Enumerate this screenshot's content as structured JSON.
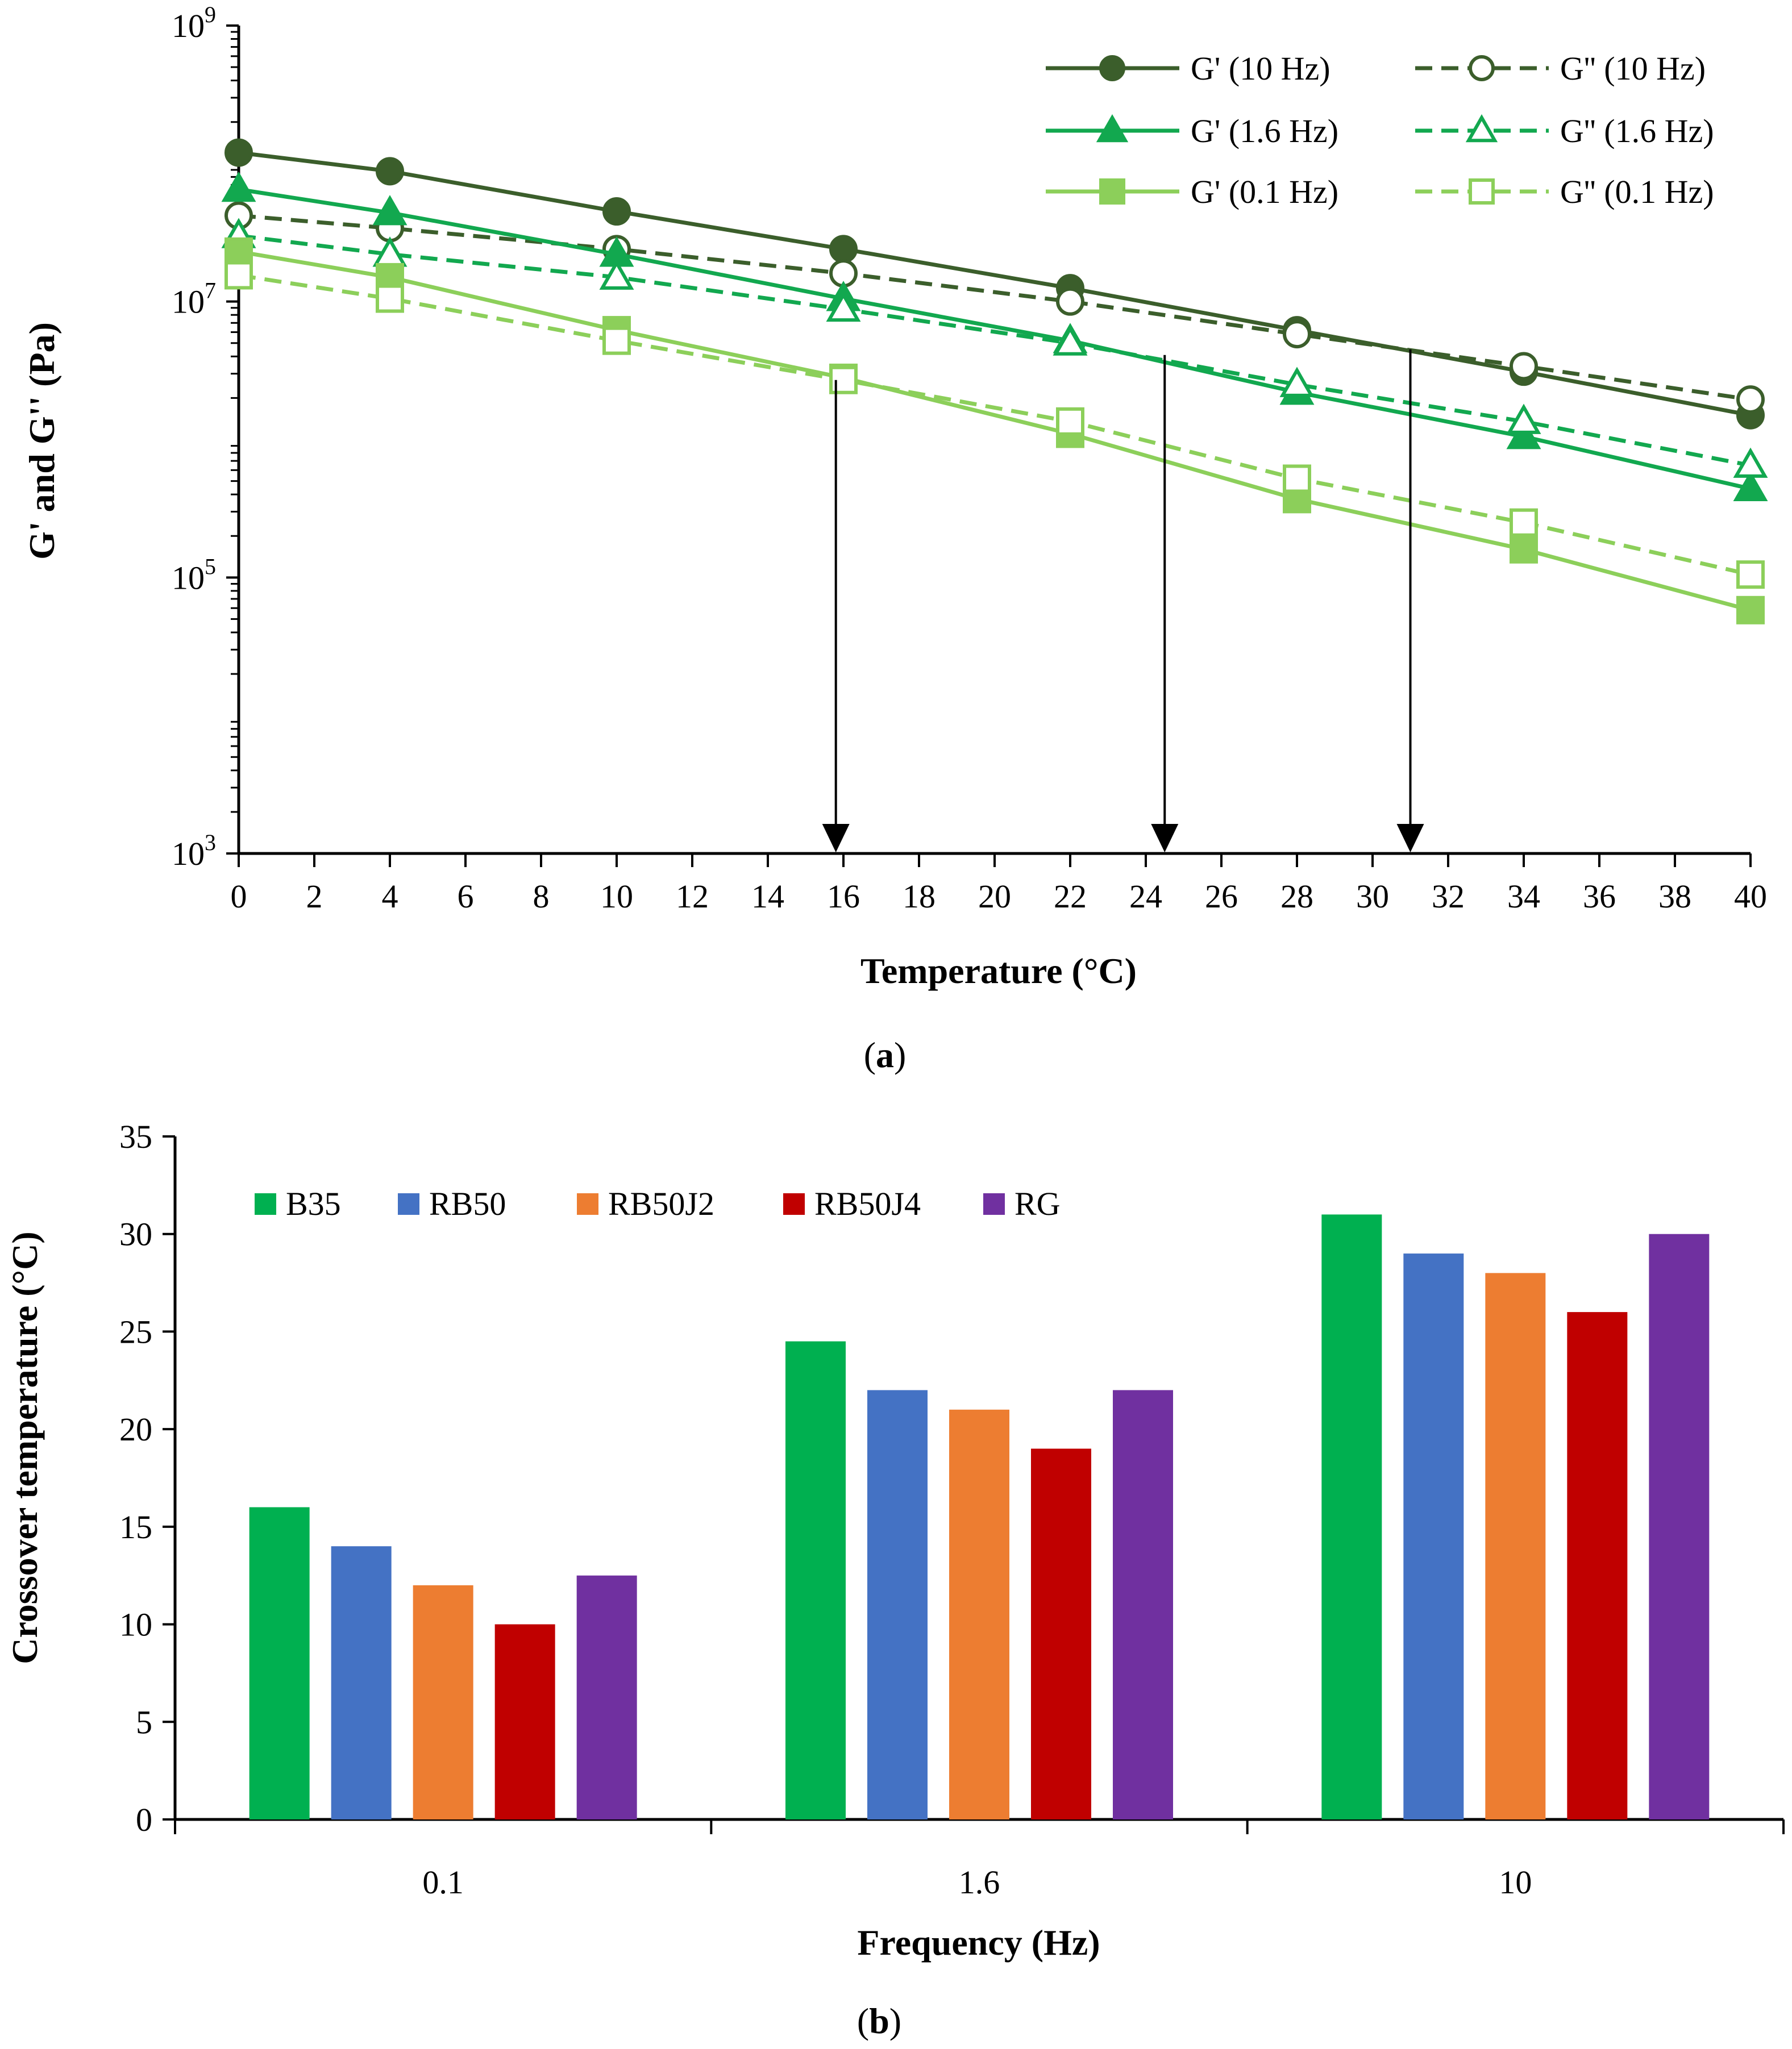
{
  "chart_data": [
    {
      "type": "line",
      "panel_label": "a",
      "xlabel": "Temperature (°C)",
      "ylabel": "G' and G'' (Pa)",
      "xlim": [
        0,
        40
      ],
      "ylim": [
        1000,
        1000000000
      ],
      "yscale": "log",
      "x_ticks": [
        "0",
        "2",
        "4",
        "6",
        "8",
        "10",
        "12",
        "14",
        "16",
        "18",
        "20",
        "22",
        "24",
        "26",
        "28",
        "30",
        "32",
        "34",
        "36",
        "38",
        "40"
      ],
      "y_ticks": [
        {
          "value": 1000,
          "base": "10",
          "exp": "3"
        },
        {
          "value": 100000,
          "base": "10",
          "exp": "5"
        },
        {
          "value": 10000000,
          "base": "10",
          "exp": "7"
        },
        {
          "value": 1000000000,
          "base": "10",
          "exp": "9"
        }
      ],
      "x": [
        0,
        4,
        10,
        16,
        22,
        28,
        34,
        40
      ],
      "series": [
        {
          "name": "G' (10 Hz)",
          "color": "#3b5e2b",
          "dash": false,
          "marker": "circle",
          "filled": true,
          "values": [
            120000000,
            88000000,
            45000000,
            24000000,
            12500000,
            6200000,
            3100000,
            1500000
          ]
        },
        {
          "name": "G'' (10 Hz)",
          "color": "#3b5e2b",
          "dash": true,
          "marker": "circle",
          "filled": false,
          "values": [
            42000000,
            34000000,
            24000000,
            16000000,
            10000000,
            5800000,
            3400000,
            1950000
          ]
        },
        {
          "name": "G' (1.6 Hz)",
          "color": "#12a84f",
          "dash": false,
          "marker": "triangle",
          "filled": true,
          "values": [
            65000000,
            44000000,
            22000000,
            10500000,
            5200000,
            2200000,
            1050000,
            440000
          ]
        },
        {
          "name": "G'' (1.6 Hz)",
          "color": "#12a84f",
          "dash": true,
          "marker": "triangle",
          "filled": false,
          "values": [
            30000000,
            22000000,
            15000000,
            8800000,
            5000000,
            2500000,
            1350000,
            650000
          ]
        },
        {
          "name": "G' (0.1 Hz)",
          "color": "#8ccf5a",
          "dash": false,
          "marker": "square",
          "filled": true,
          "values": [
            23000000,
            15000000,
            6200000,
            2800000,
            1100000,
            370000,
            160000,
            58000
          ]
        },
        {
          "name": "G'' (0.1 Hz)",
          "color": "#8ccf5a",
          "dash": true,
          "marker": "square",
          "filled": false,
          "values": [
            15500000,
            10500000,
            5200000,
            2700000,
            1350000,
            520000,
            250000,
            105000
          ]
        }
      ],
      "annotations": [
        {
          "type": "arrow",
          "x": 15.8,
          "y_from": 2700000
        },
        {
          "type": "arrow",
          "x": 24.5,
          "y_from": 4100000
        },
        {
          "type": "arrow",
          "x": 31.0,
          "y_from": 4500000
        }
      ]
    },
    {
      "type": "bar",
      "panel_label": "b",
      "xlabel": "Frequency (Hz)",
      "ylabel": "Crossover temperature (°C)",
      "ylim": [
        0,
        35
      ],
      "y_ticks": [
        "0",
        "5",
        "10",
        "15",
        "20",
        "25",
        "30",
        "35"
      ],
      "categories": [
        "0.1",
        "1.6",
        "10"
      ],
      "series": [
        {
          "name": "B35",
          "color": "#00b050",
          "values": [
            16,
            24.5,
            31
          ]
        },
        {
          "name": "RB50",
          "color": "#4472c4",
          "values": [
            14,
            22,
            29
          ]
        },
        {
          "name": "RB50J2",
          "color": "#ed7d31",
          "values": [
            12,
            21,
            28
          ]
        },
        {
          "name": "RB50J4",
          "color": "#c00000",
          "values": [
            10,
            19,
            26
          ]
        },
        {
          "name": "RG",
          "color": "#7030a0",
          "values": [
            12.5,
            22,
            30
          ]
        }
      ]
    }
  ]
}
